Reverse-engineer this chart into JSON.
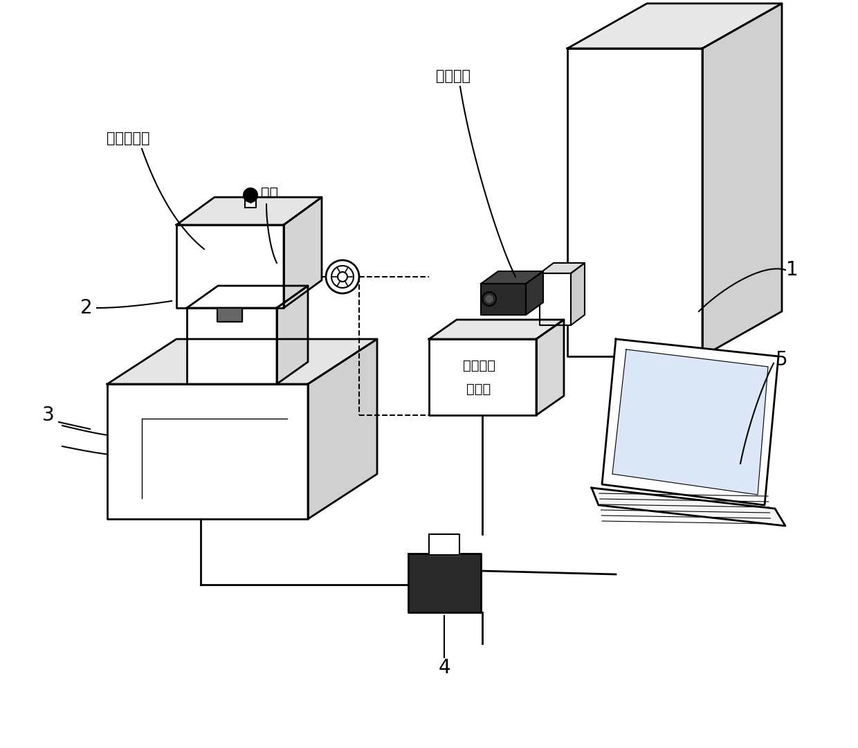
{
  "bg_color": "#ffffff",
  "line_color": "#000000",
  "labels": {
    "label_1": "1",
    "label_2": "2",
    "label_3": "3",
    "label_4": "4",
    "label_5": "5",
    "tracking_camera": "跟踪相机",
    "tracked_target": "被跟踪目标",
    "target_marker": "靶标",
    "vision_processor_line1": "视觉跟踪",
    "vision_processor_line2": "处理器"
  }
}
